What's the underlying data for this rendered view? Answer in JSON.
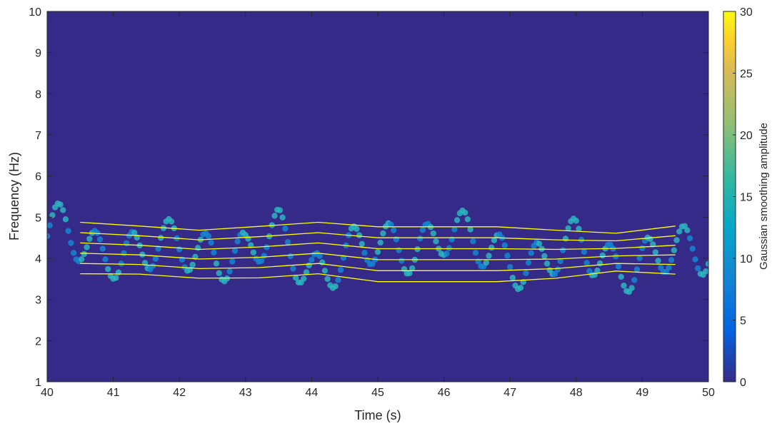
{
  "chart_data": {
    "type": "heatmap",
    "title": "",
    "xlabel": "Time (s)",
    "ylabel": "Frequency (Hz)",
    "colorbar_label": "Gaussian smoothing amplitude",
    "xlim": [
      40,
      50
    ],
    "ylim": [
      1,
      10
    ],
    "clim": [
      0,
      30
    ],
    "x_ticks": [
      40,
      41,
      42,
      43,
      44,
      45,
      46,
      47,
      48,
      49,
      50
    ],
    "y_ticks": [
      1,
      2,
      3,
      4,
      5,
      6,
      7,
      8,
      9,
      10
    ],
    "colorbar_ticks": [
      0,
      5,
      10,
      15,
      20,
      25,
      30
    ],
    "colormap": "parula",
    "background_color": "#352a87",
    "contour_color": "#ffff00",
    "grid": false,
    "ridge": {
      "description_points_time": [
        40.0,
        40.3,
        40.6,
        41.0,
        41.5,
        42.0,
        42.5,
        43.0,
        43.5,
        44.0,
        44.5,
        45.0,
        45.5,
        46.0,
        46.5,
        47.0,
        47.5,
        48.0,
        48.5,
        49.0,
        49.5,
        50.0
      ],
      "frequency_hz": [
        4.6,
        4.5,
        4.2,
        4.3,
        4.1,
        4.2,
        4.3,
        4.0,
        4.5,
        3.8,
        4.0,
        4.2,
        4.4,
        4.6,
        4.2,
        4.1,
        3.9,
        4.2,
        4.0,
        3.9,
        4.0,
        4.3
      ],
      "peak_amplitude": 14
    },
    "contour_band": {
      "time_range": [
        40.5,
        49.5
      ],
      "lower_hz": [
        3.5,
        3.5,
        3.4,
        3.4,
        3.5,
        3.3,
        3.3,
        3.3,
        3.4,
        3.6,
        3.5
      ],
      "upper_hz": [
        5.0,
        4.9,
        4.8,
        4.9,
        5.0,
        4.9,
        4.9,
        4.9,
        4.8,
        4.7,
        4.9
      ],
      "levels": 6
    }
  }
}
